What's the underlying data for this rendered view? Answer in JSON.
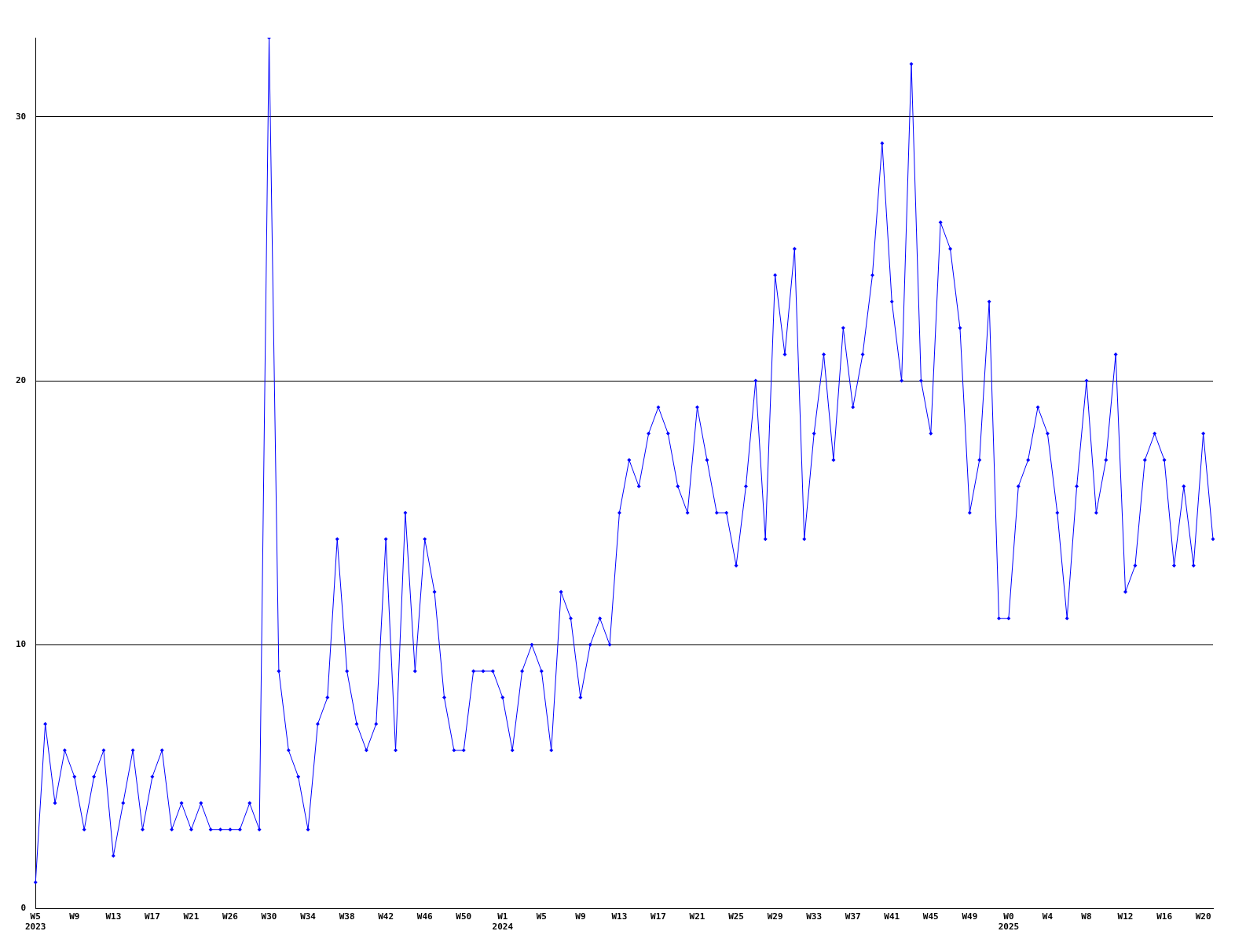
{
  "chart_data": {
    "type": "line",
    "categories": [
      "W5\n2023",
      null,
      null,
      null,
      "W9",
      null,
      null,
      null,
      "W13",
      null,
      null,
      null,
      "W17",
      null,
      null,
      null,
      "W21",
      null,
      null,
      null,
      "W26",
      null,
      null,
      null,
      "W30",
      null,
      null,
      null,
      "W34",
      null,
      null,
      null,
      "W38",
      null,
      null,
      null,
      "W42",
      null,
      null,
      null,
      "W46",
      null,
      null,
      null,
      "W50",
      null,
      null,
      null,
      "W1\n2024",
      null,
      null,
      null,
      "W5",
      null,
      null,
      null,
      "W9",
      null,
      null,
      null,
      "W13",
      null,
      null,
      null,
      "W17",
      null,
      null,
      null,
      "W21",
      null,
      null,
      null,
      "W25",
      null,
      null,
      null,
      "W29",
      null,
      null,
      null,
      "W33",
      null,
      null,
      null,
      "W37",
      null,
      null,
      null,
      "W41",
      null,
      null,
      null,
      "W45",
      null,
      null,
      null,
      "W49",
      null,
      null,
      null,
      "W0\n2025",
      null,
      null,
      null,
      "W4",
      null,
      null,
      null,
      "W8",
      null,
      null,
      null,
      "W12",
      null,
      null,
      null,
      "W16",
      null,
      null,
      null,
      "W20",
      null
    ],
    "series": [
      {
        "color": "#0000ff",
        "values": [
          1,
          7,
          4,
          6,
          5,
          3,
          5,
          6,
          2,
          4,
          6,
          3,
          5,
          6,
          3,
          4,
          3,
          4,
          3,
          3,
          3,
          3,
          4,
          3,
          33,
          9,
          6,
          5,
          3,
          7,
          8,
          14,
          9,
          7,
          6,
          7,
          14,
          6,
          15,
          9,
          14,
          12,
          8,
          6,
          6,
          9,
          9,
          9,
          8,
          6,
          9,
          10,
          9,
          6,
          12,
          11,
          8,
          10,
          11,
          10,
          15,
          17,
          16,
          18,
          19,
          18,
          16,
          15,
          19,
          17,
          15,
          15,
          13,
          16,
          20,
          14,
          24,
          21,
          25,
          14,
          18,
          21,
          17,
          22,
          19,
          21,
          24,
          29,
          23,
          20,
          32,
          20,
          18,
          26,
          25,
          22,
          15,
          17,
          23,
          11,
          11,
          16,
          17,
          19,
          18,
          15,
          11,
          16,
          20,
          15,
          17,
          21,
          12,
          13,
          17,
          18,
          17,
          13,
          16,
          13,
          18,
          14
        ]
      }
    ],
    "ylim": [
      0,
      33
    ],
    "yticks": [
      0,
      10,
      20,
      30
    ],
    "grid": "y",
    "legend": false,
    "marker": "diamond",
    "line_style": "solid"
  }
}
